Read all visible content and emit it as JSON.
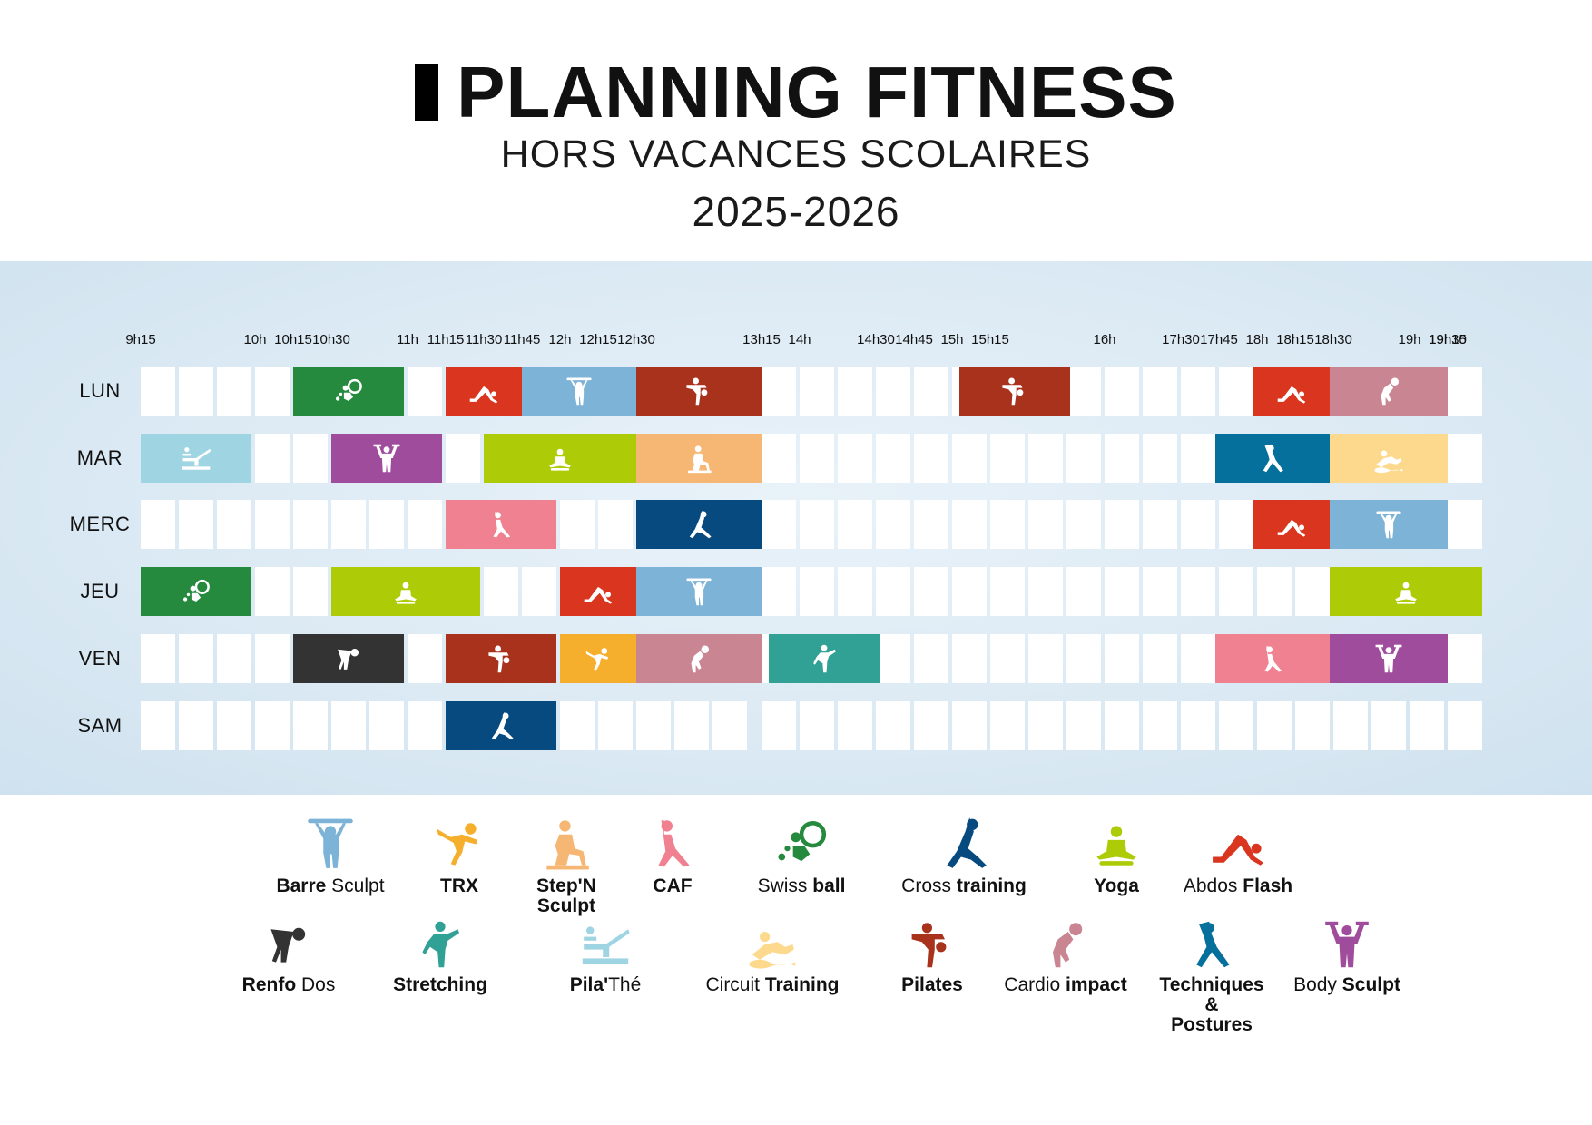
{
  "header": {
    "title": "PLANNING FITNESS",
    "subtitle": "HORS VACANCES SCOLAIRES",
    "year": "2025-2026"
  },
  "time_labels": [
    {
      "label": "9h15",
      "col": 0
    },
    {
      "label": "10h",
      "col": 3
    },
    {
      "label": "10h15",
      "col": 4
    },
    {
      "label": "10h30",
      "col": 5
    },
    {
      "label": "11h",
      "col": 7
    },
    {
      "label": "11h15",
      "col": 8
    },
    {
      "label": "11h30",
      "col": 9
    },
    {
      "label": "11h45",
      "col": 10
    },
    {
      "label": "12h",
      "col": 11
    },
    {
      "label": "12h15",
      "col": 12
    },
    {
      "label": "12h30",
      "col": 13
    },
    {
      "label": "13h15",
      "col": 16
    },
    {
      "label": "14h",
      "col": 17
    },
    {
      "label": "14h30",
      "col": 19
    },
    {
      "label": "14h45",
      "col": 20
    },
    {
      "label": "15h",
      "col": 21
    },
    {
      "label": "15h15",
      "col": 22
    },
    {
      "label": "16h",
      "col": 25
    },
    {
      "label": "17h30",
      "col": 27
    },
    {
      "label": "17h45",
      "col": 28
    },
    {
      "label": "18h",
      "col": 29
    },
    {
      "label": "18h15",
      "col": 30
    },
    {
      "label": "18h30",
      "col": 31
    },
    {
      "label": "19h",
      "col": 33
    },
    {
      "label": "19h15",
      "col": 34
    },
    {
      "label": "19h30",
      "col": 35
    }
  ],
  "days": [
    "LUN",
    "MAR",
    "MERC",
    "JEU",
    "VEN",
    "SAM"
  ],
  "classes": {
    "barre_sculpt": {
      "label_parts": [
        {
          "t": "Barre",
          "b": true
        },
        {
          "t": " Sculpt",
          "b": false
        }
      ],
      "color": "#7db3d6",
      "icon": "barre-sculpt-icon"
    },
    "trx": {
      "label_parts": [
        {
          "t": "TRX",
          "b": true
        }
      ],
      "color": "#f6ae2d",
      "icon": "trx-icon"
    },
    "step_sculpt": {
      "label_parts": [
        {
          "t": "Step'N",
          "b": true
        },
        {
          "t": "\nSculpt",
          "b": true
        }
      ],
      "color": "#f7b774",
      "icon": "step-sculpt-icon"
    },
    "caf": {
      "label_parts": [
        {
          "t": "CAF",
          "b": true
        }
      ],
      "color": "#f08190",
      "icon": "caf-icon"
    },
    "swiss_ball": {
      "label_parts": [
        {
          "t": "Swiss ",
          "b": false
        },
        {
          "t": "ball",
          "b": true
        }
      ],
      "color": "#258a3e",
      "icon": "swiss-ball-icon"
    },
    "cross_training": {
      "label_parts": [
        {
          "t": "Cross ",
          "b": false
        },
        {
          "t": "training",
          "b": true
        }
      ],
      "color": "#074a7f",
      "icon": "cross-training-icon"
    },
    "yoga": {
      "label_parts": [
        {
          "t": "Yoga",
          "b": true
        }
      ],
      "color": "#aecb08",
      "icon": "yoga-icon"
    },
    "abdos_flash": {
      "label_parts": [
        {
          "t": "Abdos ",
          "b": false
        },
        {
          "t": "Flash",
          "b": true
        }
      ],
      "color": "#d9351f",
      "icon": "abdos-flash-icon"
    },
    "renfo_dos": {
      "label_parts": [
        {
          "t": "Renfo",
          "b": true
        },
        {
          "t": " Dos",
          "b": false
        }
      ],
      "color": "#333333",
      "icon": "renfo-dos-icon"
    },
    "stretching": {
      "label_parts": [
        {
          "t": "Stretching",
          "b": true
        }
      ],
      "color": "#31a095",
      "icon": "stretching-icon"
    },
    "pilathe": {
      "label_parts": [
        {
          "t": "Pila'",
          "b": true
        },
        {
          "t": "Thé",
          "b": false
        }
      ],
      "color": "#9fd5e3",
      "icon": "pilathe-icon"
    },
    "circuit_training": {
      "label_parts": [
        {
          "t": "Circuit ",
          "b": false
        },
        {
          "t": "Training",
          "b": true
        }
      ],
      "color": "#fdd98e",
      "icon": "circuit-training-icon"
    },
    "pilates": {
      "label_parts": [
        {
          "t": "Pilates",
          "b": true
        }
      ],
      "color": "#a8321c",
      "icon": "pilates-icon"
    },
    "cardio_impact": {
      "label_parts": [
        {
          "t": "Cardio ",
          "b": false
        },
        {
          "t": "impact",
          "b": true
        }
      ],
      "color": "#c98591",
      "icon": "cardio-impact-icon"
    },
    "techniques_postures": {
      "label_parts": [
        {
          "t": "Techniques",
          "b": true
        },
        {
          "t": "\n&",
          "b": true
        },
        {
          "t": "\nPostures",
          "b": true
        }
      ],
      "color": "#05709c",
      "icon": "techniques-postures-icon"
    },
    "body_sculpt": {
      "label_parts": [
        {
          "t": "Body ",
          "b": false
        },
        {
          "t": "Sculpt",
          "b": true
        }
      ],
      "color": "#a04c9c",
      "icon": "body-sculpt-icon"
    }
  },
  "sessions": [
    {
      "day": 0,
      "start": 4,
      "end": 6.9,
      "class": "swiss_ball"
    },
    {
      "day": 0,
      "start": 8,
      "end": 10,
      "class": "abdos_flash"
    },
    {
      "day": 0,
      "start": 10,
      "end": 13,
      "class": "barre_sculpt"
    },
    {
      "day": 0,
      "start": 13,
      "end": 16,
      "class": "pilates"
    },
    {
      "day": 0,
      "start": 21.2,
      "end": 24.1,
      "class": "pilates"
    },
    {
      "day": 0,
      "start": 28.9,
      "end": 30.9,
      "class": "abdos_flash"
    },
    {
      "day": 0,
      "start": 30.9,
      "end": 34,
      "class": "cardio_impact"
    },
    {
      "day": 1,
      "start": 0,
      "end": 2.9,
      "class": "pilathe"
    },
    {
      "day": 1,
      "start": 5,
      "end": 7.9,
      "class": "body_sculpt"
    },
    {
      "day": 1,
      "start": 9,
      "end": 13,
      "class": "yoga"
    },
    {
      "day": 1,
      "start": 13,
      "end": 16,
      "class": "step_sculpt"
    },
    {
      "day": 1,
      "start": 27.9,
      "end": 30.9,
      "class": "techniques_postures"
    },
    {
      "day": 1,
      "start": 30.9,
      "end": 34,
      "class": "circuit_training"
    },
    {
      "day": 2,
      "start": 8,
      "end": 10.9,
      "class": "caf"
    },
    {
      "day": 2,
      "start": 13,
      "end": 16,
      "class": "cross_training"
    },
    {
      "day": 2,
      "start": 28.9,
      "end": 30.9,
      "class": "abdos_flash"
    },
    {
      "day": 2,
      "start": 30.9,
      "end": 34,
      "class": "barre_sculpt"
    },
    {
      "day": 3,
      "start": 0,
      "end": 2.9,
      "class": "swiss_ball"
    },
    {
      "day": 3,
      "start": 5,
      "end": 8.9,
      "class": "yoga"
    },
    {
      "day": 3,
      "start": 11,
      "end": 13,
      "class": "abdos_flash"
    },
    {
      "day": 3,
      "start": 13,
      "end": 16,
      "class": "barre_sculpt"
    },
    {
      "day": 3,
      "start": 30.9,
      "end": 34.9,
      "class": "yoga"
    },
    {
      "day": 4,
      "start": 4,
      "end": 6.9,
      "class": "renfo_dos"
    },
    {
      "day": 4,
      "start": 8,
      "end": 10.9,
      "class": "pilates"
    },
    {
      "day": 4,
      "start": 11,
      "end": 13,
      "class": "trx"
    },
    {
      "day": 4,
      "start": 13,
      "end": 16,
      "class": "cardio_impact"
    },
    {
      "day": 4,
      "start": 16.2,
      "end": 19.1,
      "class": "stretching"
    },
    {
      "day": 4,
      "start": 27.9,
      "end": 30.9,
      "class": "caf"
    },
    {
      "day": 4,
      "start": 30.9,
      "end": 34,
      "class": "body_sculpt"
    },
    {
      "day": 5,
      "start": 8,
      "end": 10.9,
      "class": "cross_training"
    }
  ],
  "legend_rows": [
    [
      "barre_sculpt",
      "trx",
      "step_sculpt",
      "caf",
      "swiss_ball",
      "cross_training",
      "yoga",
      "abdos_flash"
    ],
    [
      "renfo_dos",
      "stretching",
      "pilathe",
      "circuit_training",
      "pilates",
      "cardio_impact",
      "techniques_postures",
      "body_sculpt"
    ]
  ]
}
